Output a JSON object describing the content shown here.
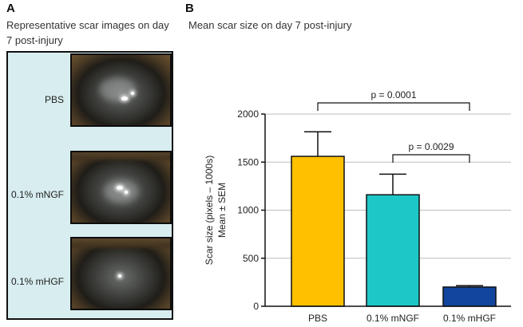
{
  "panel_a": {
    "letter": "A",
    "title": "Representative scar images on day 7 post-injury",
    "rows": [
      {
        "label": "PBS"
      },
      {
        "label": "0.1% mNGF"
      },
      {
        "label": "0.1% mHGF"
      }
    ]
  },
  "panel_b": {
    "letter": "B",
    "title": "Mean scar size on day 7 post-injury"
  },
  "chart_data": {
    "type": "bar",
    "title": "Mean scar size on day 7 post-injury",
    "categories": [
      "PBS",
      "0.1% mNGF",
      "0.1% mHGF"
    ],
    "values": [
      1560,
      1160,
      200
    ],
    "errors": [
      255,
      215,
      15
    ],
    "colors": [
      "#ffc000",
      "#1ec7c7",
      "#12459e"
    ],
    "ylabel_line1": "Scar size (pixels – 1000s)",
    "ylabel_line2": "Mean ± SEM",
    "xlabel": "",
    "ylim": [
      0,
      2000
    ],
    "yticks": [
      0,
      500,
      1000,
      1500,
      2000
    ],
    "grid": true,
    "annotations": [
      {
        "text": "p = 0.0001",
        "from": 0,
        "to": 2
      },
      {
        "text": "p = 0.0029",
        "from": 1,
        "to": 2
      }
    ]
  }
}
